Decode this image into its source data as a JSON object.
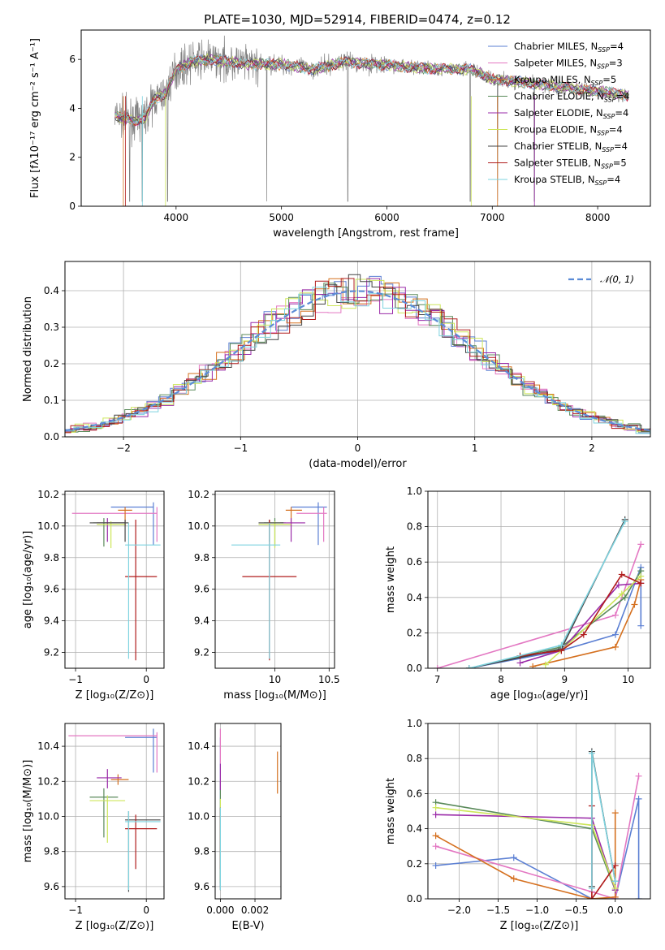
{
  "figure": {
    "title": "PLATE=1030, MJD=52914, FIBERID=0474, z=0.12"
  },
  "chart_data": [
    {
      "id": "spectrum",
      "type": "line",
      "xlabel": "wavelength [Angstrom, rest frame]",
      "ylabel": "Flux [fλ10⁻¹⁷ erg cm⁻² s⁻¹ A⁻¹]",
      "xlim": [
        3100,
        8500
      ],
      "ylim": [
        0,
        7.2
      ],
      "xticks": [
        4000,
        5000,
        6000,
        7000,
        8000
      ],
      "yticks": [
        0,
        2,
        4,
        6
      ],
      "data_color": "#808080",
      "continuum_anchors": {
        "x": [
          3420,
          3600,
          3700,
          3800,
          3900,
          4000,
          4150,
          4300,
          4500,
          4700,
          5000,
          5300,
          5600,
          5900,
          6200,
          6500,
          6800,
          7000,
          7200,
          7400,
          7600,
          7800,
          8000,
          8200,
          8300
        ],
        "y": [
          3.7,
          3.5,
          3.6,
          4.4,
          4.6,
          5.6,
          5.9,
          6.0,
          5.9,
          5.8,
          5.8,
          5.6,
          5.9,
          5.8,
          5.7,
          5.6,
          5.6,
          5.2,
          5.1,
          5.0,
          4.9,
          4.8,
          4.7,
          4.6,
          4.5
        ]
      },
      "legend": [
        {
          "label": "Chabrier MILES, N",
          "sub": "SSP",
          "n": "=4",
          "color": "#5b7fd3"
        },
        {
          "label": "Salpeter MILES, N",
          "sub": "SSP",
          "n": "=3",
          "color": "#e377c2"
        },
        {
          "label": "Kroupa MILES, N",
          "sub": "SSP",
          "n": "=5",
          "color": "#d5701f"
        },
        {
          "label": "Chabrier ELODIE, N",
          "sub": "SSP",
          "n": "=4",
          "color": "#5a8a5a"
        },
        {
          "label": "Salpeter ELODIE, N",
          "sub": "SSP",
          "n": "=4",
          "color": "#9a2aa8"
        },
        {
          "label": "Kroupa ELODIE, N",
          "sub": "SSP",
          "n": "=4",
          "color": "#cde65a"
        },
        {
          "label": "Chabrier STELIB, N",
          "sub": "SSP",
          "n": "=4",
          "color": "#444444"
        },
        {
          "label": "Salpeter STELIB, N",
          "sub": "SSP",
          "n": "=5",
          "color": "#b01c1c"
        },
        {
          "label": "Kroupa STELIB, N",
          "sub": "SSP",
          "n": "=4",
          "color": "#7ed3df"
        }
      ]
    },
    {
      "id": "residuals",
      "type": "histogram",
      "xlabel": "(data-model)/error",
      "ylabel": "Normed distribution",
      "xlim": [
        -2.5,
        2.5
      ],
      "ylim": [
        0,
        0.48
      ],
      "xticks": [
        -2,
        -1,
        0,
        1,
        2
      ],
      "yticks": [
        0.0,
        0.1,
        0.2,
        0.3,
        0.4
      ],
      "grid": true,
      "legend": {
        "label": "𝒩(0, 1)",
        "color": "#5b8bd6",
        "placement": "top-right"
      }
    },
    {
      "id": "age-vs-Z",
      "type": "scatter-errorbar",
      "xlabel": "Z [log₁₀(Z/Z⊙)]",
      "ylabel": "age  [log₁₀(age/yr)]",
      "xlim": [
        -1.15,
        0.25
      ],
      "ylim": [
        9.1,
        10.22
      ],
      "xticks": [
        -1,
        0
      ],
      "yticks": [
        9.2,
        9.4,
        9.6,
        9.8,
        10.0,
        10.2
      ],
      "grid": true,
      "points": [
        {
          "model": 0,
          "x": 0.1,
          "y": 10.12,
          "xe": [
            -0.5,
            0.1
          ],
          "ye": [
            9.88,
            10.15
          ]
        },
        {
          "model": 1,
          "x": 0.15,
          "y": 10.08,
          "xe": [
            -1.05,
            0.15
          ],
          "ye": [
            9.9,
            10.12
          ]
        },
        {
          "model": 2,
          "x": -0.3,
          "y": 10.1,
          "xe": [
            -0.4,
            -0.2
          ],
          "ye": [
            10.0,
            10.12
          ]
        },
        {
          "model": 3,
          "x": -0.6,
          "y": 10.02,
          "xe": [
            -0.75,
            -0.3
          ],
          "ye": [
            9.87,
            10.05
          ]
        },
        {
          "model": 4,
          "x": -0.55,
          "y": 10.02,
          "xe": [
            -0.7,
            -0.3
          ],
          "ye": [
            9.9,
            10.05
          ]
        },
        {
          "model": 5,
          "x": -0.5,
          "y": 10.01,
          "xe": [
            -0.7,
            -0.3
          ],
          "ye": [
            9.86,
            10.03
          ]
        },
        {
          "model": 6,
          "x": -0.3,
          "y": 10.02,
          "xe": [
            -0.8,
            -0.25
          ],
          "ye": [
            9.9,
            10.04
          ]
        },
        {
          "model": 7,
          "x": -0.15,
          "y": 9.68,
          "xe": [
            -0.3,
            0.15
          ],
          "ye": [
            9.15,
            10.04
          ]
        },
        {
          "model": 8,
          "x": -0.25,
          "y": 9.88,
          "xe": [
            -0.3,
            0.2
          ],
          "ye": [
            9.16,
            10.02
          ]
        }
      ]
    },
    {
      "id": "age-vs-mass",
      "type": "scatter-errorbar",
      "xlabel": "mass [log₁₀(M/M⊙)]",
      "ylabel": "",
      "xlim": [
        9.45,
        10.55
      ],
      "ylim": [
        9.1,
        10.22
      ],
      "xticks": [
        10.0,
        10.5
      ],
      "yticks": [
        9.2,
        9.4,
        9.6,
        9.8,
        10.0,
        10.2
      ],
      "grid": true,
      "points": [
        {
          "model": 0,
          "x": 10.4,
          "y": 10.12,
          "xe": [
            10.15,
            10.48
          ],
          "ye": [
            9.88,
            10.15
          ]
        },
        {
          "model": 1,
          "x": 10.45,
          "y": 10.08,
          "xe": [
            10.2,
            10.48
          ],
          "ye": [
            9.9,
            10.12
          ]
        },
        {
          "model": 2,
          "x": 10.15,
          "y": 10.1,
          "xe": [
            10.1,
            10.25
          ],
          "ye": [
            10.0,
            10.12
          ]
        },
        {
          "model": 3,
          "x": 10.0,
          "y": 10.02,
          "xe": [
            9.9,
            10.1
          ],
          "ye": [
            9.87,
            10.05
          ]
        },
        {
          "model": 4,
          "x": 10.15,
          "y": 10.02,
          "xe": [
            10.05,
            10.28
          ],
          "ye": [
            9.9,
            10.05
          ]
        },
        {
          "model": 5,
          "x": 10.0,
          "y": 10.01,
          "xe": [
            9.85,
            10.15
          ],
          "ye": [
            9.86,
            10.03
          ]
        },
        {
          "model": 6,
          "x": 9.95,
          "y": 10.02,
          "xe": [
            9.85,
            10.08
          ],
          "ye": [
            9.9,
            10.04
          ]
        },
        {
          "model": 7,
          "x": 9.95,
          "y": 9.68,
          "xe": [
            9.7,
            10.2
          ],
          "ye": [
            9.15,
            10.04
          ]
        },
        {
          "model": 8,
          "x": 9.95,
          "y": 9.88,
          "xe": [
            9.6,
            10.05
          ],
          "ye": [
            9.16,
            10.02
          ]
        }
      ]
    },
    {
      "id": "mass-weight-vs-age",
      "type": "line",
      "xlabel": "age  [log₁₀(age/yr)]",
      "ylabel": "mass weight",
      "xlim": [
        6.85,
        10.35
      ],
      "ylim": [
        0,
        1.0
      ],
      "xticks": [
        7,
        8,
        9,
        10
      ],
      "yticks": [
        0.0,
        0.2,
        0.4,
        0.6,
        0.8,
        1.0
      ],
      "grid": true,
      "series": [
        {
          "model": 0,
          "x": [
            7.5,
            8.95,
            9.8,
            10.2,
            10.2
          ],
          "y": [
            0.0,
            0.1,
            0.19,
            0.57,
            0.24
          ]
        },
        {
          "model": 1,
          "x": [
            7.0,
            9.8,
            10.2
          ],
          "y": [
            0.0,
            0.3,
            0.7
          ]
        },
        {
          "model": 2,
          "x": [
            8.5,
            9.8,
            10.1,
            10.2
          ],
          "y": [
            0.01,
            0.12,
            0.36,
            0.5
          ]
        },
        {
          "model": 3,
          "x": [
            7.5,
            8.95,
            9.95,
            10.2
          ],
          "y": [
            0.0,
            0.12,
            0.4,
            0.55
          ]
        },
        {
          "model": 4,
          "x": [
            8.3,
            8.95,
            9.85,
            10.2
          ],
          "y": [
            0.03,
            0.1,
            0.47,
            0.48
          ]
        },
        {
          "model": 5,
          "x": [
            8.7,
            8.95,
            9.9,
            10.2
          ],
          "y": [
            0.02,
            0.1,
            0.42,
            0.52
          ]
        },
        {
          "model": 6,
          "x": [
            7.5,
            8.95,
            9.95
          ],
          "y": [
            0.0,
            0.11,
            0.84
          ]
        },
        {
          "model": 7,
          "x": [
            8.3,
            8.95,
            9.3,
            9.9,
            10.2
          ],
          "y": [
            0.07,
            0.1,
            0.19,
            0.53,
            0.48
          ]
        },
        {
          "model": 8,
          "x": [
            7.5,
            8.95,
            9.95
          ],
          "y": [
            0.0,
            0.13,
            0.83
          ]
        }
      ]
    },
    {
      "id": "mass-vs-Z",
      "type": "scatter-errorbar",
      "xlabel": "Z [log₁₀(Z/Z⊙)]",
      "ylabel": "mass [log₁₀(M/M⊙)]",
      "xlim": [
        -1.15,
        0.25
      ],
      "ylim": [
        9.53,
        10.53
      ],
      "xticks": [
        -1,
        0
      ],
      "yticks": [
        9.6,
        9.8,
        10.0,
        10.2,
        10.4
      ],
      "grid": true,
      "points": [
        {
          "model": 0,
          "x": 0.1,
          "y": 10.45,
          "xe": [
            -0.3,
            0.15
          ],
          "ye": [
            10.25,
            10.5
          ]
        },
        {
          "model": 1,
          "x": 0.15,
          "y": 10.46,
          "xe": [
            -1.1,
            0.15
          ],
          "ye": [
            10.25,
            10.48
          ]
        },
        {
          "model": 2,
          "x": -0.4,
          "y": 10.21,
          "xe": [
            -0.5,
            -0.25
          ],
          "ye": [
            10.18,
            10.24
          ]
        },
        {
          "model": 3,
          "x": -0.6,
          "y": 10.11,
          "xe": [
            -0.8,
            -0.4
          ],
          "ye": [
            9.88,
            10.16
          ]
        },
        {
          "model": 4,
          "x": -0.55,
          "y": 10.22,
          "xe": [
            -0.7,
            -0.35
          ],
          "ye": [
            10.16,
            10.27
          ]
        },
        {
          "model": 5,
          "x": -0.55,
          "y": 10.09,
          "xe": [
            -0.8,
            -0.3
          ],
          "ye": [
            9.85,
            10.12
          ]
        },
        {
          "model": 6,
          "x": -0.25,
          "y": 9.98,
          "xe": [
            -0.3,
            0.2
          ],
          "ye": [
            9.57,
            10.03
          ]
        },
        {
          "model": 7,
          "x": -0.15,
          "y": 9.93,
          "xe": [
            -0.3,
            0.15
          ],
          "ye": [
            9.7,
            10.01
          ]
        },
        {
          "model": 8,
          "x": -0.25,
          "y": 9.97,
          "xe": [
            -0.3,
            0.2
          ],
          "ye": [
            9.58,
            10.03
          ]
        }
      ]
    },
    {
      "id": "mass-vs-ebv",
      "type": "scatter-errorbar",
      "xlabel": "E(B-V)",
      "ylabel": "",
      "xlim": [
        -0.0003,
        0.0035
      ],
      "ylim": [
        9.53,
        10.53
      ],
      "xticks": [
        0.0,
        0.002
      ],
      "xticklabels": [
        "0.000",
        "0.002"
      ],
      "yticks": [
        9.6,
        9.8,
        10.0,
        10.2,
        10.4
      ],
      "grid": true,
      "points": [
        {
          "model": 0,
          "x": 0.0,
          "y": 10.0,
          "xe": [
            0.0,
            0.0
          ],
          "ye": [
            9.6,
            10.45
          ]
        },
        {
          "model": 1,
          "x": 0.0,
          "y": 10.4,
          "xe": [
            0.0,
            0.0
          ],
          "ye": [
            10.3,
            10.5
          ]
        },
        {
          "model": 2,
          "x": 0.0033,
          "y": 10.25,
          "xe": [
            0.0033,
            0.0033
          ],
          "ye": [
            10.13,
            10.37
          ]
        },
        {
          "model": 3,
          "x": 0.0,
          "y": 10.0,
          "xe": [
            0.0,
            0.0
          ],
          "ye": [
            9.62,
            10.2
          ]
        },
        {
          "model": 4,
          "x": 0.0,
          "y": 10.2,
          "xe": [
            0.0,
            0.0
          ],
          "ye": [
            10.15,
            10.3
          ]
        },
        {
          "model": 5,
          "x": 0.0,
          "y": 10.0,
          "xe": [
            0.0,
            0.0
          ],
          "ye": [
            9.62,
            10.1
          ]
        },
        {
          "model": 6,
          "x": 0.0,
          "y": 9.95,
          "xe": [
            0.0,
            0.0
          ],
          "ye": [
            9.58,
            10.05
          ]
        },
        {
          "model": 7,
          "x": 0.0,
          "y": 9.9,
          "xe": [
            0.0,
            0.0
          ],
          "ye": [
            9.7,
            10.05
          ]
        },
        {
          "model": 8,
          "x": 0.0,
          "y": 9.95,
          "xe": [
            0.0,
            0.0
          ],
          "ye": [
            9.58,
            10.05
          ]
        }
      ]
    },
    {
      "id": "mass-weight-vs-Z",
      "type": "line",
      "xlabel": "Z [log₁₀(Z/Z⊙)]",
      "ylabel": "mass weight",
      "xlim": [
        -2.4,
        0.45
      ],
      "ylim": [
        0,
        1.0
      ],
      "xticks": [
        -2.0,
        -1.5,
        -1.0,
        -0.5,
        0.0
      ],
      "xticklabels": [
        "−2.0",
        "−1.5",
        "−1.0",
        "−0.5",
        "0.0"
      ],
      "yticks": [
        0.0,
        0.2,
        0.4,
        0.6,
        0.8,
        1.0
      ],
      "grid": true,
      "series": [
        {
          "model": 0,
          "x": [
            -2.3,
            -1.3,
            -0.3,
            0.0,
            0.3,
            0.3
          ],
          "y": [
            0.19,
            0.235,
            0.0,
            0.0,
            0.57,
            0.0
          ]
        },
        {
          "model": 1,
          "x": [
            -2.3,
            -0.3,
            0.0,
            0.3
          ],
          "y": [
            0.3,
            0.04,
            0.0,
            0.7
          ]
        },
        {
          "model": 2,
          "x": [
            -2.3,
            -1.3,
            -0.3,
            0.0,
            0.0
          ],
          "y": [
            0.36,
            0.115,
            0.0,
            0.01,
            0.49
          ]
        },
        {
          "model": 3,
          "x": [
            -2.3,
            -0.3,
            0.0
          ],
          "y": [
            0.55,
            0.4,
            0.05
          ]
        },
        {
          "model": 4,
          "x": [
            -2.3,
            -0.3,
            0.0
          ],
          "y": [
            0.48,
            0.46,
            0.05
          ]
        },
        {
          "model": 5,
          "x": [
            -2.3,
            -0.3,
            0.0
          ],
          "y": [
            0.52,
            0.42,
            0.06
          ]
        },
        {
          "model": 6,
          "x": [
            -0.3,
            -0.3,
            0.0
          ],
          "y": [
            0.07,
            0.84,
            0.1
          ]
        },
        {
          "model": 7,
          "x": [
            -0.3,
            -0.3,
            0.0
          ],
          "y": [
            0.53,
            0.0,
            0.19
          ]
        },
        {
          "model": 8,
          "x": [
            -0.3,
            -0.3,
            0.0
          ],
          "y": [
            0.06,
            0.83,
            0.1
          ]
        }
      ]
    }
  ]
}
